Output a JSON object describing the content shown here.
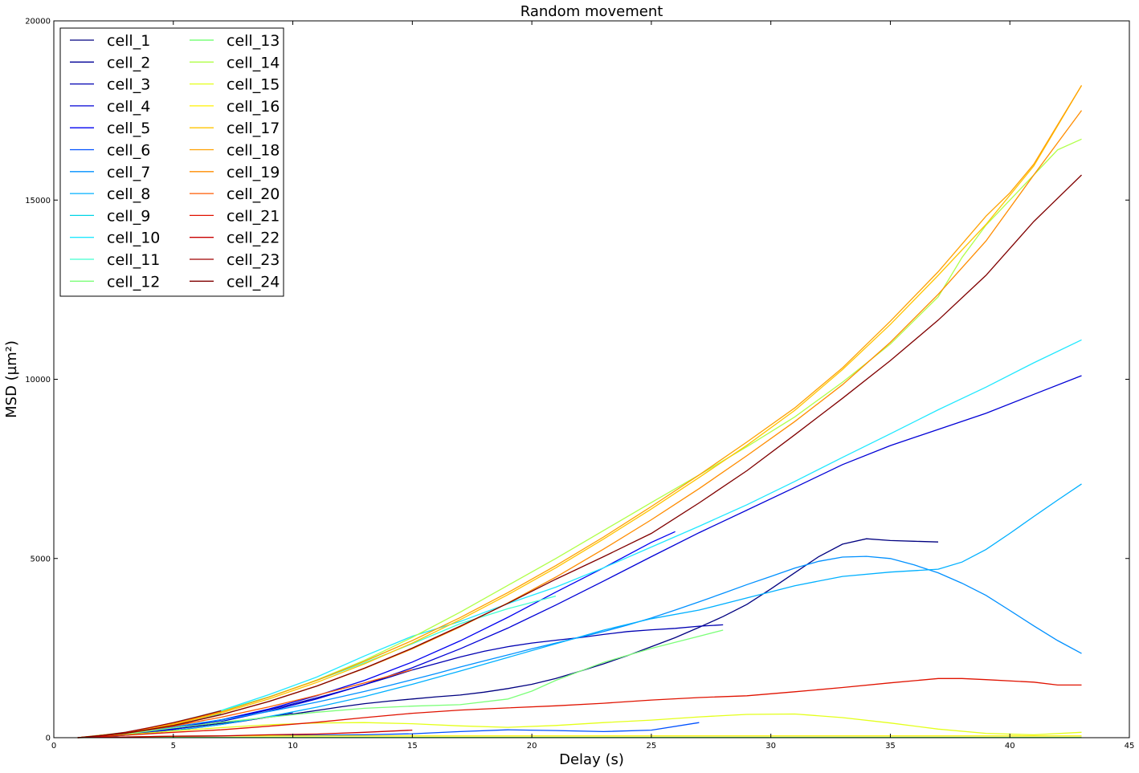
{
  "chart_data": {
    "type": "line",
    "title": "Random movement",
    "xlabel": "Delay (s)",
    "ylabel": "MSD (µm²)",
    "xlim": [
      0,
      45
    ],
    "ylim": [
      0,
      20000
    ],
    "xticks": [
      0,
      5,
      10,
      15,
      20,
      25,
      30,
      35,
      40,
      45
    ],
    "yticks": [
      0,
      5000,
      10000,
      15000,
      20000
    ],
    "grid": false,
    "legend_position": "top-left",
    "legend_columns": 2,
    "series": [
      {
        "name": "cell_1",
        "color": "#000080",
        "x": [
          1,
          2,
          3,
          4,
          5,
          6,
          7,
          8,
          9,
          10,
          11,
          12,
          13,
          14,
          15,
          16,
          17,
          18,
          19,
          20,
          21,
          22,
          23,
          24,
          25,
          26,
          27,
          28,
          29,
          30,
          31,
          32,
          33,
          34,
          35,
          36,
          37
        ],
        "y": [
          0,
          30,
          90,
          160,
          240,
          320,
          400,
          480,
          570,
          660,
          760,
          860,
          950,
          1020,
          1080,
          1140,
          1190,
          1270,
          1370,
          1490,
          1650,
          1850,
          2060,
          2290,
          2540,
          2790,
          3080,
          3380,
          3720,
          4150,
          4600,
          5050,
          5400,
          5550,
          5500,
          5480,
          5460
        ]
      },
      {
        "name": "cell_2",
        "color": "#000096",
        "x": [
          1,
          2,
          3,
          4,
          5,
          6,
          7,
          8,
          9,
          10
        ],
        "y": [
          0,
          20,
          70,
          130,
          200,
          280,
          370,
          470,
          580,
          700
        ]
      },
      {
        "name": "cell_3",
        "color": "#0000B2",
        "x": [
          1,
          2,
          3,
          4,
          5,
          6,
          7,
          8,
          9,
          10,
          11,
          12,
          13,
          14,
          15,
          16,
          17,
          18,
          19,
          20,
          21,
          22,
          23,
          24,
          25,
          26,
          27,
          28
        ],
        "y": [
          0,
          30,
          90,
          170,
          260,
          370,
          490,
          630,
          780,
          940,
          1110,
          1290,
          1480,
          1680,
          1890,
          2070,
          2250,
          2410,
          2540,
          2640,
          2720,
          2790,
          2880,
          2960,
          3010,
          3050,
          3110,
          3150
        ]
      },
      {
        "name": "cell_4",
        "color": "#0000D6",
        "x": [
          1,
          3,
          5,
          7,
          9,
          11,
          13,
          15,
          17,
          19,
          21,
          23,
          25,
          27,
          29,
          31,
          33,
          35,
          37,
          39,
          41,
          43
        ],
        "y": [
          0,
          80,
          230,
          450,
          740,
          1080,
          1480,
          1950,
          2480,
          3060,
          3700,
          4370,
          5050,
          5720,
          6350,
          6980,
          7620,
          8150,
          8600,
          9050,
          9580,
          10100
        ]
      },
      {
        "name": "cell_5",
        "color": "#0000F0",
        "x": [
          1,
          3,
          5,
          7,
          9,
          11,
          13,
          15,
          17,
          19,
          21,
          23,
          25,
          26
        ],
        "y": [
          0,
          90,
          260,
          500,
          800,
          1170,
          1600,
          2110,
          2700,
          3360,
          4060,
          4740,
          5450,
          5750
        ]
      },
      {
        "name": "cell_6",
        "color": "#0050FF",
        "x": [
          1,
          3,
          5,
          7,
          9,
          11,
          13,
          15,
          17,
          19,
          21,
          23,
          25,
          27
        ],
        "y": [
          0,
          20,
          40,
          50,
          60,
          70,
          80,
          110,
          170,
          220,
          200,
          170,
          210,
          420
        ]
      },
      {
        "name": "cell_7",
        "color": "#0090FF",
        "x": [
          1,
          2,
          3,
          4,
          5,
          6,
          7,
          8,
          9,
          10,
          11,
          12,
          13,
          14,
          15,
          16,
          17,
          18,
          19,
          20,
          21,
          22,
          23,
          24,
          25,
          26,
          27,
          28,
          29,
          30,
          31,
          32,
          33,
          34,
          35,
          36,
          37,
          38,
          39,
          40,
          41,
          42,
          43
        ],
        "y": [
          0,
          40,
          110,
          200,
          300,
          400,
          500,
          610,
          730,
          860,
          990,
          1140,
          1290,
          1450,
          1620,
          1790,
          1970,
          2140,
          2310,
          2480,
          2640,
          2800,
          2960,
          3140,
          3340,
          3560,
          3790,
          4030,
          4270,
          4500,
          4730,
          4920,
          5040,
          5060,
          5000,
          4820,
          4600,
          4310,
          3970,
          3550,
          3120,
          2710,
          2350
        ]
      },
      {
        "name": "cell_8",
        "color": "#00B0FF",
        "x": [
          1,
          3,
          5,
          7,
          9,
          11,
          13,
          15,
          17,
          19,
          21,
          23,
          25,
          27,
          29,
          31,
          33,
          35,
          37,
          38,
          39,
          40,
          41,
          42,
          43
        ],
        "y": [
          0,
          70,
          200,
          370,
          590,
          850,
          1150,
          1490,
          1860,
          2240,
          2620,
          3000,
          3320,
          3560,
          3900,
          4240,
          4500,
          4620,
          4700,
          4900,
          5250,
          5700,
          6170,
          6630,
          7080
        ]
      },
      {
        "name": "cell_9",
        "color": "#00D4E6",
        "x": [
          1,
          3,
          5,
          7
        ],
        "y": [
          0,
          110,
          330,
          660
        ]
      },
      {
        "name": "cell_10",
        "color": "#20E8FF",
        "x": [
          1,
          3,
          5,
          7,
          9,
          11,
          13,
          15,
          17,
          19,
          21,
          23,
          25,
          27,
          29,
          31,
          33,
          35,
          37,
          39,
          41,
          43
        ],
        "y": [
          0,
          150,
          400,
          760,
          1200,
          1690,
          2280,
          2830,
          3240,
          3740,
          4200,
          4740,
          5320,
          5900,
          6500,
          7150,
          7820,
          8480,
          9150,
          9780,
          10460,
          11100
        ]
      },
      {
        "name": "cell_11",
        "color": "#40FFD0",
        "x": [
          1,
          3,
          5,
          7,
          9,
          11,
          13,
          15,
          17,
          19,
          21
        ],
        "y": [
          0,
          130,
          420,
          750,
          1140,
          1600,
          2090,
          2620,
          3180,
          3600,
          3950
        ]
      },
      {
        "name": "cell_12",
        "color": "#7CFF79",
        "x": [
          1,
          3,
          5,
          7,
          9,
          11,
          13,
          15,
          17,
          19,
          20,
          21,
          23,
          25,
          27,
          28
        ],
        "y": [
          0,
          100,
          270,
          430,
          570,
          710,
          820,
          880,
          920,
          1080,
          1300,
          1600,
          2100,
          2490,
          2830,
          3000
        ]
      },
      {
        "name": "cell_13",
        "color": "#60FF60",
        "x": [
          1,
          3,
          5,
          7,
          9,
          11,
          13,
          15,
          17,
          19,
          21,
          23,
          25,
          27,
          29,
          31,
          33,
          35,
          37,
          39,
          41,
          43
        ],
        "y": [
          0,
          5,
          10,
          10,
          10,
          10,
          10,
          10,
          10,
          10,
          10,
          10,
          10,
          10,
          10,
          10,
          10,
          10,
          10,
          10,
          10,
          10
        ]
      },
      {
        "name": "cell_14",
        "color": "#B0FF48",
        "x": [
          1,
          3,
          5,
          7,
          9,
          11,
          13,
          15,
          17,
          19,
          21,
          23,
          25,
          27,
          29,
          31,
          33,
          35,
          37,
          38,
          39,
          40,
          41,
          42,
          43
        ],
        "y": [
          0,
          140,
          390,
          720,
          1130,
          1610,
          2160,
          2800,
          3500,
          4250,
          5000,
          5780,
          6560,
          7330,
          8120,
          8950,
          9920,
          10980,
          12300,
          13400,
          14300,
          15000,
          15700,
          16400,
          16700
        ]
      },
      {
        "name": "cell_15",
        "color": "#E4FF1A",
        "x": [
          1,
          3,
          5,
          7,
          9,
          11,
          13,
          15,
          17,
          19,
          21,
          23,
          25,
          27,
          29,
          31,
          33,
          35,
          37,
          39,
          41,
          43
        ],
        "y": [
          0,
          80,
          190,
          280,
          360,
          410,
          420,
          390,
          330,
          290,
          340,
          420,
          490,
          580,
          650,
          660,
          560,
          410,
          240,
          120,
          80,
          150
        ]
      },
      {
        "name": "cell_16",
        "color": "#FFF000",
        "x": [
          1,
          3,
          5,
          7,
          9,
          11,
          13,
          15,
          17,
          19,
          21,
          23,
          25,
          27,
          29,
          31,
          33,
          35,
          37,
          39,
          41,
          43
        ],
        "y": [
          0,
          20,
          40,
          50,
          50,
          50,
          50,
          50,
          50,
          50,
          50,
          50,
          50,
          50,
          50,
          50,
          50,
          50,
          50,
          50,
          50,
          50
        ]
      },
      {
        "name": "cell_17",
        "color": "#FFC400",
        "x": [
          1,
          3,
          5,
          7,
          9,
          11,
          13,
          15,
          17,
          19,
          21,
          23,
          25,
          27,
          29,
          31,
          33,
          35,
          37,
          39,
          41,
          43
        ],
        "y": [
          0,
          130,
          370,
          690,
          1080,
          1540,
          2060,
          2640,
          3290,
          3990,
          4740,
          5540,
          6380,
          7260,
          8160,
          9130,
          10270,
          11530,
          12900,
          14320,
          15950,
          18200
        ]
      },
      {
        "name": "cell_18",
        "color": "#FFA000",
        "x": [
          1,
          3,
          5,
          7,
          9,
          11,
          13,
          15,
          17,
          19,
          21,
          23,
          25,
          27,
          29,
          31,
          33,
          35,
          37,
          39,
          40,
          41,
          42,
          43
        ],
        "y": [
          0,
          140,
          390,
          720,
          1130,
          1600,
          2130,
          2710,
          3350,
          4050,
          4800,
          5600,
          6450,
          7330,
          8250,
          9200,
          10320,
          11620,
          13000,
          14550,
          15200,
          16000,
          17100,
          18200
        ]
      },
      {
        "name": "cell_19",
        "color": "#FF8C00",
        "x": [
          1,
          3,
          5,
          7,
          9,
          11,
          13,
          15,
          17,
          19,
          21,
          23,
          25,
          27,
          29,
          31,
          33,
          35,
          37,
          39,
          41,
          43
        ],
        "y": [
          0,
          120,
          340,
          640,
          1010,
          1440,
          1930,
          2480,
          3090,
          3760,
          4480,
          5260,
          6080,
          6950,
          7870,
          8820,
          9850,
          11030,
          12370,
          13860,
          15700,
          17500
        ]
      },
      {
        "name": "cell_20",
        "color": "#FF5A00",
        "x": [
          1,
          3,
          5,
          7,
          9,
          11,
          13,
          15
        ],
        "y": [
          0,
          120,
          320,
          570,
          860,
          1180,
          1530,
          1900
        ]
      },
      {
        "name": "cell_21",
        "color": "#E01200",
        "x": [
          1,
          3,
          5,
          7,
          9,
          11,
          13,
          15,
          17,
          19,
          21,
          23,
          25,
          27,
          29,
          31,
          33,
          35,
          37,
          38,
          39,
          41,
          42,
          43
        ],
        "y": [
          0,
          70,
          150,
          220,
          320,
          430,
          560,
          680,
          770,
          830,
          890,
          960,
          1050,
          1120,
          1170,
          1280,
          1400,
          1530,
          1650,
          1650,
          1620,
          1550,
          1470,
          1470
        ]
      },
      {
        "name": "cell_22",
        "color": "#C80000",
        "x": [
          1,
          3,
          5,
          7,
          9,
          11,
          13,
          15
        ],
        "y": [
          0,
          20,
          40,
          50,
          80,
          100,
          150,
          210
        ]
      },
      {
        "name": "cell_23",
        "color": "#A00000",
        "x": [
          1,
          2,
          3,
          4,
          5,
          6,
          7
        ],
        "y": [
          0,
          60,
          150,
          280,
          420,
          580,
          750
        ]
      },
      {
        "name": "cell_24",
        "color": "#800000",
        "x": [
          1,
          3,
          5,
          7,
          9,
          11,
          13,
          15,
          17,
          19,
          21,
          23,
          25,
          27,
          29,
          31,
          33,
          35,
          37,
          39,
          41,
          43
        ],
        "y": [
          0,
          120,
          340,
          640,
          1010,
          1440,
          1940,
          2500,
          3110,
          3750,
          4420,
          5050,
          5700,
          6550,
          7450,
          8450,
          9470,
          10520,
          11650,
          12900,
          14400,
          15700
        ]
      }
    ]
  }
}
